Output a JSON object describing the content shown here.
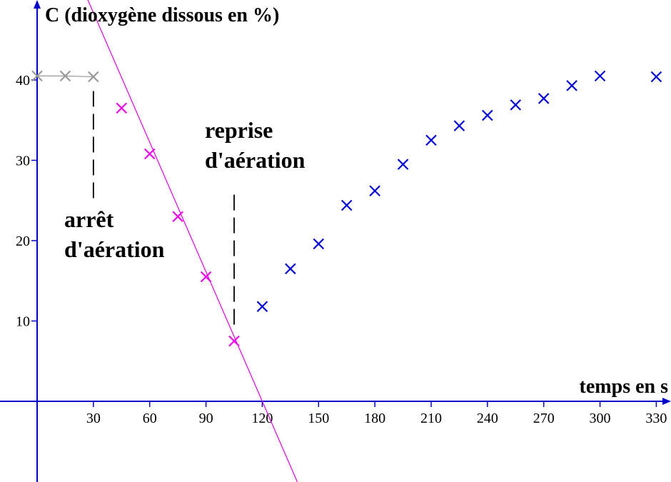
{
  "chart_data": {
    "type": "scatter",
    "title": "",
    "ylabel": "C  (dioxygène dissous en %)",
    "xlabel": "temps en s",
    "xlim": [
      -30,
      342
    ],
    "ylim": [
      -10,
      49
    ],
    "x_ticks": [
      "30",
      "60",
      "90",
      "120",
      "150",
      "180",
      "210",
      "240",
      "270",
      "300",
      "330"
    ],
    "x_tick_values": [
      30,
      60,
      90,
      120,
      150,
      180,
      210,
      240,
      270,
      300,
      330
    ],
    "y_ticks": [
      "10",
      "20",
      "30",
      "40"
    ],
    "y_tick_values": [
      10,
      20,
      30,
      40
    ],
    "grid": false,
    "series": [
      {
        "color": "#999999",
        "connected": true,
        "x": [
          0,
          15,
          30
        ],
        "y": [
          40.5,
          40.5,
          40.4
        ]
      },
      {
        "color": "#ee00ee",
        "connected": false,
        "x": [
          45,
          60,
          75,
          90,
          105
        ],
        "y": [
          36.5,
          30.8,
          23.0,
          15.5,
          7.5
        ]
      },
      {
        "color": "#0000dd",
        "connected": false,
        "x": [
          120,
          135,
          150,
          165,
          180,
          195,
          210,
          225,
          240,
          255,
          270,
          285,
          300,
          330
        ],
        "y": [
          11.8,
          16.5,
          19.6,
          24.4,
          26.2,
          29.5,
          32.5,
          34.3,
          35.6,
          36.9,
          37.7,
          39.3,
          40.5,
          40.4
        ]
      }
    ],
    "fit_line": {
      "color": "#dd00dd",
      "slope": -0.5375,
      "intercept": 64.5,
      "x_range": [
        -4.6,
        139.5
      ]
    },
    "annotations": [
      {
        "lines": [
          "arrêt",
          "d'aération"
        ],
        "x": 30,
        "y_from": 40.4,
        "y_to": 24.5
      },
      {
        "lines": [
          "reprise",
          "d'aération"
        ],
        "x": 105,
        "y_from": 27.5,
        "y_to": 9.5
      }
    ]
  }
}
